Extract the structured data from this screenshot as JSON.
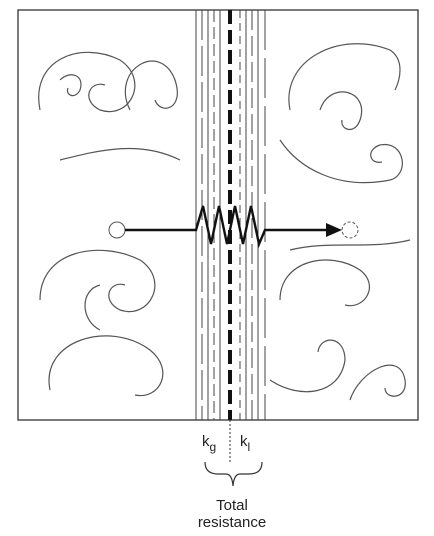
{
  "labels": {
    "gas": {
      "symbol": "k",
      "subscript": "g"
    },
    "liquid": {
      "symbol": "k",
      "subscript": "l"
    },
    "total": [
      "Total",
      "resistance"
    ]
  }
}
